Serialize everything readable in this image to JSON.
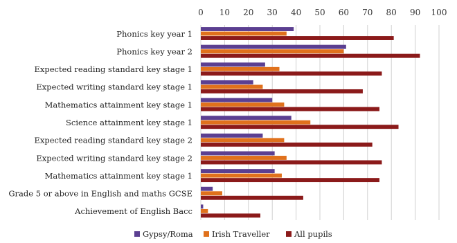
{
  "chart_data": {
    "type": "bar",
    "orientation": "horizontal",
    "categories": [
      "Phonics key year 1",
      "Phonics key year 2",
      "Expected reading standard key stage 1",
      "Expected writing standard key stage 1",
      "Mathematics attainment key stage 1",
      "Science attainment key stage 1",
      "Expected reading standard key stage 2",
      "Expected writing standard key stage 2",
      "Mathematics attainment key stage 1",
      "Grade 5 or above in English and maths GCSE",
      "Achievement of English Bacc"
    ],
    "series": [
      {
        "name": "Gypsy/Roma",
        "color": "#5b3f91",
        "values": [
          39,
          61,
          27,
          22,
          30,
          38,
          26,
          31,
          31,
          5,
          1
        ]
      },
      {
        "name": "Irish Traveller",
        "color": "#e0711c",
        "values": [
          36,
          60,
          33,
          26,
          35,
          46,
          35,
          36,
          34,
          9,
          3
        ]
      },
      {
        "name": "All pupils",
        "color": "#8b1a1a",
        "values": [
          81,
          92,
          76,
          68,
          75,
          83,
          72,
          76,
          75,
          43,
          25
        ]
      }
    ],
    "x_ticks": [
      0,
      10,
      20,
      30,
      40,
      50,
      60,
      70,
      80,
      90,
      100
    ],
    "xlim": [
      0,
      100
    ],
    "x_axis_position": "top",
    "grid": true,
    "legend_position": "bottom"
  }
}
